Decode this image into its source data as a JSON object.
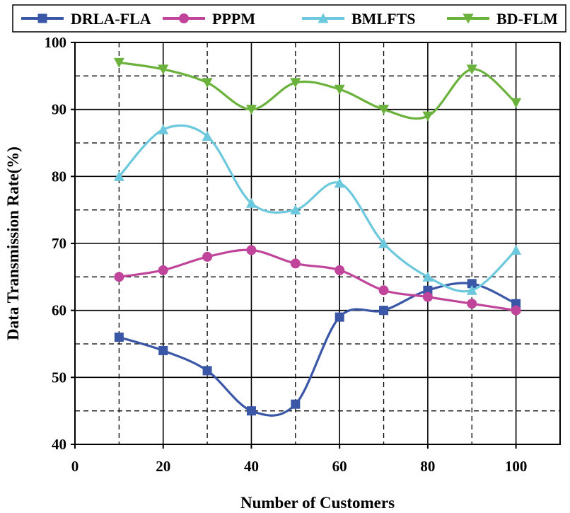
{
  "chart_data": {
    "type": "line",
    "title": "",
    "xlabel": "Number of Customers",
    "ylabel": "Data Transmission Rate(%)",
    "xlim": [
      0,
      110
    ],
    "ylim": [
      40,
      100
    ],
    "xticks": [
      "0",
      "20",
      "40",
      "60",
      "80",
      "100"
    ],
    "yticks": [
      "40",
      "50",
      "60",
      "70",
      "80",
      "90",
      "100"
    ],
    "grid": true,
    "legend_position": "top",
    "x": [
      10,
      20,
      30,
      40,
      50,
      60,
      70,
      80,
      90,
      100
    ],
    "series": [
      {
        "name": "DRLA-FLA",
        "color": "#3a56a6",
        "marker": "square",
        "values": [
          56,
          54,
          51,
          45,
          46,
          59,
          60,
          63,
          64,
          61
        ]
      },
      {
        "name": "PPPM",
        "color": "#c0449a",
        "marker": "circle",
        "values": [
          65,
          66,
          68,
          69,
          67,
          66,
          63,
          62,
          61,
          60
        ]
      },
      {
        "name": "BMLFTS",
        "color": "#6cc8dc",
        "marker": "triangle-up",
        "values": [
          80,
          87,
          86,
          76,
          75,
          79,
          70,
          65,
          63,
          69
        ]
      },
      {
        "name": "BD-FLM",
        "color": "#6ab23c",
        "marker": "triangle-down",
        "values": [
          97,
          96,
          94,
          90,
          94,
          93,
          90,
          89,
          96,
          91
        ]
      }
    ]
  }
}
